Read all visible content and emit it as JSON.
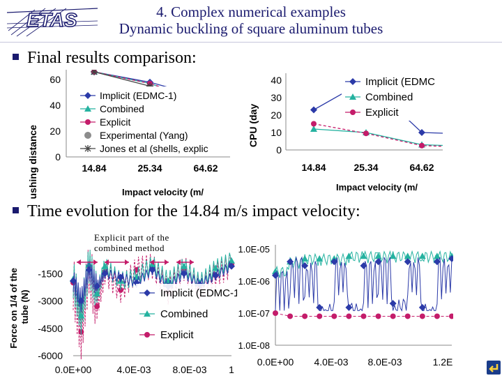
{
  "header": {
    "logo_text": "ETAS",
    "title_line1": "4. Complex numerical examples",
    "title_line2": "Dynamic buckling of square aluminum tubes"
  },
  "bullets": {
    "results": "Final results comparison:",
    "time_evolution": "Time evolution for the 14.84 m/s impact velocity:"
  },
  "annotation": {
    "line1": "Explicit part of the",
    "line2": "combined method"
  },
  "colors": {
    "implicit": "#2b3aa8",
    "combined": "#25b2a0",
    "explicit": "#c41c6a",
    "experimental": "#8c8c8c",
    "jones": "#444444",
    "title": "#1a1a6e"
  },
  "chart_data": [
    {
      "type": "line",
      "ylabel": "Crushing distance",
      "xlabel": "Impact velocity (m/",
      "categories": [
        "14.84",
        "25.34",
        "64.62"
      ],
      "yticks": [
        "0",
        "20",
        "40",
        "60"
      ],
      "ylim": [
        0,
        65
      ],
      "series": [
        {
          "name": "Implicit (EDMC-1)",
          "values": [
            70,
            58,
            46
          ]
        },
        {
          "name": "Combined",
          "values": [
            70,
            57,
            42
          ]
        },
        {
          "name": "Explicit",
          "values": [
            70,
            57,
            43
          ]
        },
        {
          "name": "Experimental (Yang)",
          "values": [
            null,
            50,
            40
          ]
        },
        {
          "name": "Jones et al (shells, explic",
          "values": [
            68,
            55,
            38
          ]
        }
      ],
      "legend": "inside-left"
    },
    {
      "type": "line",
      "ylabel": "CPU (day",
      "xlabel": "Impact velocity (m/",
      "categories": [
        "14.84",
        "25.34",
        "64.62"
      ],
      "yticks": [
        "0",
        "10",
        "20",
        "30",
        "40"
      ],
      "ylim": [
        0,
        40
      ],
      "series": [
        {
          "name": "Implicit (EDMC",
          "values": [
            23,
            44,
            10
          ]
        },
        {
          "name": "Combined",
          "values": [
            12,
            10,
            3
          ]
        },
        {
          "name": "Explicit",
          "values": [
            15,
            9.5,
            2.5
          ]
        }
      ],
      "legend": "top-right"
    },
    {
      "type": "line",
      "ylabel": "Force on 1/4 of the tube (N)",
      "xticks": [
        "0.0E+00",
        "4.0E-03",
        "8.0E-03",
        "1"
      ],
      "yticks": [
        "-1500",
        "-3000",
        "-4500",
        "-6000"
      ],
      "ylim": [
        -6000,
        0
      ],
      "xlim": [
        0,
        0.01
      ],
      "series": [
        {
          "name": "Implicit (EDMC-1)",
          "x": [
            0,
            0.0005,
            0.001,
            0.0015,
            0.002,
            0.003,
            0.004,
            0.005,
            0.006,
            0.007,
            0.008,
            0.009,
            0.01
          ],
          "values": [
            -1900,
            -3000,
            -1300,
            -2200,
            -1500,
            -1700,
            -2000,
            -1300,
            -2200,
            -1500,
            -2100,
            -1600,
            -1100
          ]
        },
        {
          "name": "Combined",
          "x": [
            0,
            0.0005,
            0.001,
            0.0015,
            0.002,
            0.003,
            0.004,
            0.005,
            0.006,
            0.007,
            0.008,
            0.009,
            0.01
          ],
          "values": [
            -1800,
            -3800,
            -1000,
            -2600,
            -1100,
            -1900,
            -1700,
            -1000,
            -1900,
            -1100,
            -2000,
            -1200,
            -800
          ]
        },
        {
          "name": "Explicit",
          "x": [
            0,
            0.0005,
            0.001,
            0.0015,
            0.002,
            0.003,
            0.004,
            0.005,
            0.006,
            0.007,
            0.008,
            0.009,
            0.01
          ],
          "values": [
            -2000,
            -4700,
            -1100,
            -3300,
            -1400,
            -2400,
            -1300,
            -1100,
            -2500,
            -1200,
            -2300,
            -1600,
            -1000
          ]
        }
      ],
      "legend": "lower-right"
    },
    {
      "type": "line",
      "yscale": "log",
      "xticks": [
        "0.0E+00",
        "4.0E-03",
        "8.0E-03",
        "1.2E"
      ],
      "yticks": [
        "1.0E-05",
        "1.0E-06",
        "1.0E-07",
        "1.0E-08"
      ],
      "ylim": [
        1e-08,
        1e-05
      ],
      "xlim": [
        0,
        0.012
      ],
      "series": [
        {
          "name": "Implicit",
          "x": [
            0,
            0.001,
            0.002,
            0.003,
            0.004,
            0.005,
            0.006,
            0.007,
            0.008,
            0.009,
            0.01,
            0.011,
            0.012
          ],
          "values": [
            1.5e-06,
            4e-06,
            3e-06,
            1.5e-07,
            4e-06,
            1.5e-07,
            3e-06,
            4e-06,
            2e-07,
            4e-06,
            1.5e-07,
            4e-06,
            5e-06
          ]
        },
        {
          "name": "Combined",
          "x": [
            0,
            0.001,
            0.002,
            0.003,
            0.004,
            0.005,
            0.006,
            0.007,
            0.008,
            0.009,
            0.01,
            0.011,
            0.012
          ],
          "values": [
            2e-06,
            4e-06,
            5e-06,
            5e-06,
            5e-06,
            6e-06,
            6e-06,
            6e-06,
            6e-06,
            6e-06,
            6e-06,
            6e-06,
            6e-06
          ]
        },
        {
          "name": "Explicit",
          "x": [
            0,
            0.001,
            0.002,
            0.003,
            0.004,
            0.005,
            0.006,
            0.007,
            0.008,
            0.009,
            0.01,
            0.011,
            0.012
          ],
          "values": [
            1e-07,
            8e-08,
            8e-08,
            8e-08,
            8e-08,
            8e-08,
            8e-08,
            8e-08,
            8e-08,
            8e-08,
            8e-08,
            8e-08,
            8e-08
          ]
        }
      ]
    }
  ],
  "nav": {
    "icon": "return-arrow-icon"
  }
}
